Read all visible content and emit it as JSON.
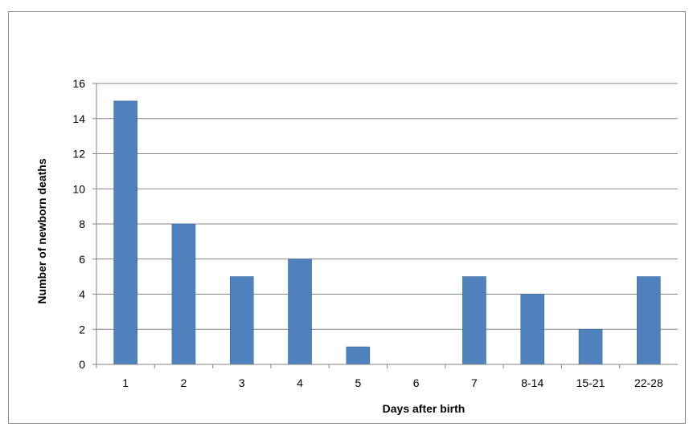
{
  "chart_data": {
    "type": "bar",
    "title": "",
    "xlabel": "Days after  birth",
    "ylabel": "Number of newborn deaths",
    "categories": [
      "1",
      "2",
      "3",
      "4",
      "5",
      "6",
      "7",
      "8-14",
      "15-21",
      "22-28"
    ],
    "series": [
      {
        "values": [
          15,
          8,
          5,
          6,
          1,
          0,
          5,
          4,
          2,
          5
        ]
      }
    ],
    "ylim": [
      0,
      16
    ],
    "yticks": [
      "0",
      "2",
      "4",
      "6",
      "8",
      "10",
      "12",
      "14",
      "16"
    ],
    "grid": true,
    "legend": "none",
    "colors": {
      "bar": "#4f81bd",
      "bar_edge": "#3c6896",
      "grid": "#868686",
      "axis": "#868686"
    }
  }
}
